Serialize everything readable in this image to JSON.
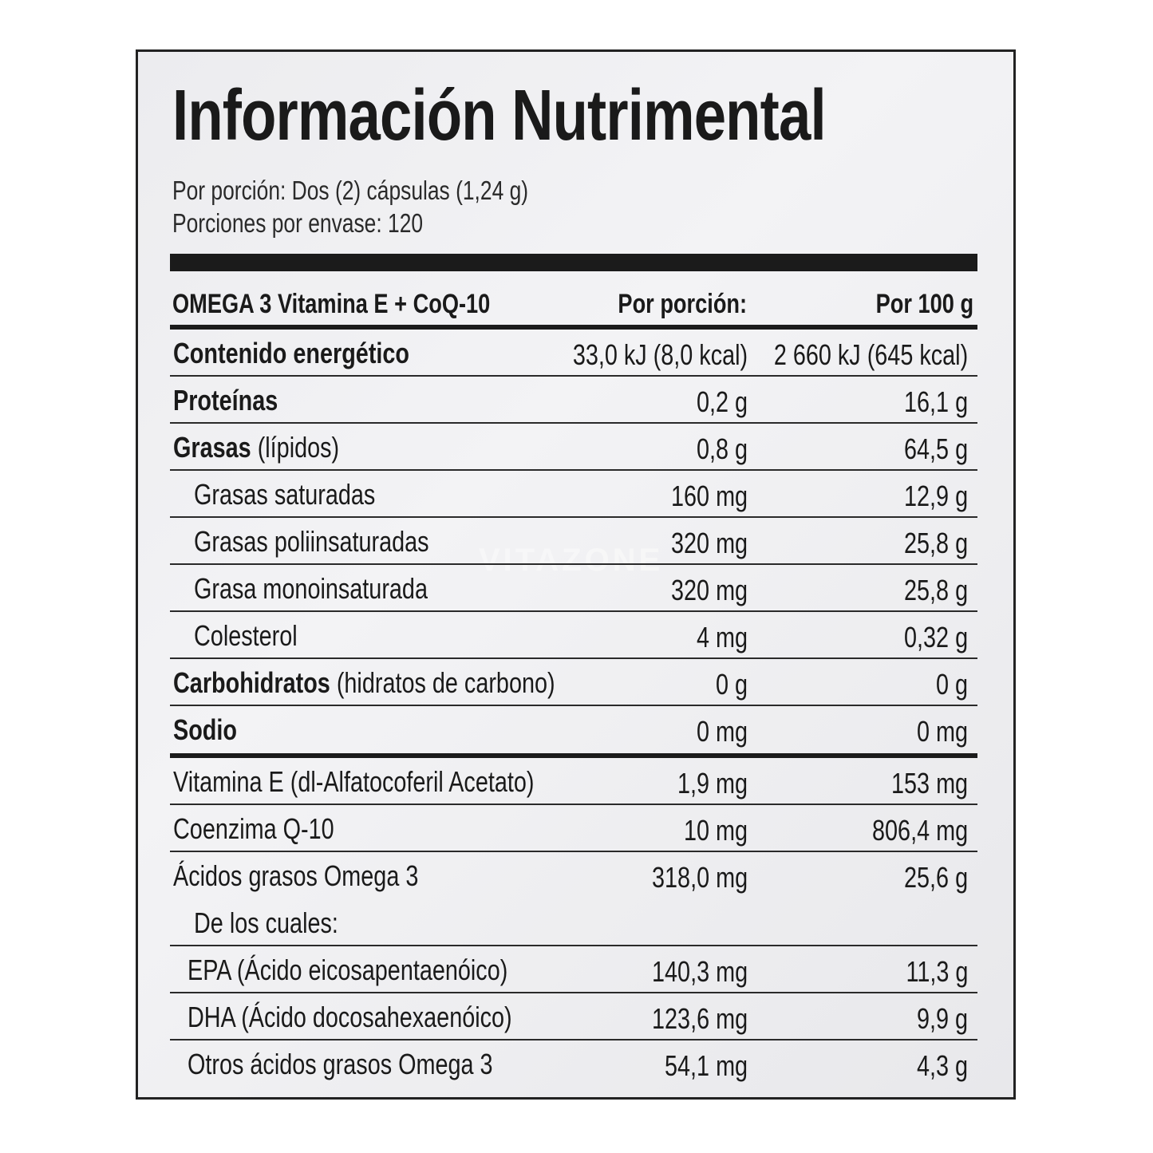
{
  "title": "Información Nutrimental",
  "serving": "Por porción: Dos (2) cápsulas (1,24 g)",
  "servings_per_container": "Porciones por envase: 120",
  "watermark": "VITAZONE",
  "header": {
    "product": "OMEGA 3 Vitamina E + CoQ-10",
    "per_serving": "Por porción:",
    "per_100g": "Por 100 g"
  },
  "rows": [
    {
      "bold": "Contenido energético",
      "normal": "",
      "indent": 0,
      "per_serving": "33,0 kJ (8,0 kcal)",
      "per_100g": "2 660 kJ (645 kcal)",
      "line": "thin"
    },
    {
      "bold": "Proteínas",
      "normal": "",
      "indent": 0,
      "per_serving": "0,2 g",
      "per_100g": "16,1 g",
      "line": "thin"
    },
    {
      "bold": "Grasas",
      "normal": " (lípidos)",
      "indent": 0,
      "per_serving": "0,8 g",
      "per_100g": "64,5 g",
      "line": "thin"
    },
    {
      "bold": "",
      "normal": "Grasas saturadas",
      "indent": 1,
      "per_serving": "160 mg",
      "per_100g": "12,9 g",
      "line": "thin"
    },
    {
      "bold": "",
      "normal": "Grasas poliinsaturadas",
      "indent": 1,
      "per_serving": "320 mg",
      "per_100g": "25,8 g",
      "line": "thin"
    },
    {
      "bold": "",
      "normal": "Grasa monoinsaturada",
      "indent": 1,
      "per_serving": "320 mg",
      "per_100g": "25,8 g",
      "line": "thin"
    },
    {
      "bold": "",
      "normal": "Colesterol",
      "indent": 1,
      "per_serving": "4 mg",
      "per_100g": "0,32 g",
      "line": "thin"
    },
    {
      "bold": "Carbohidratos",
      "normal": " (hidratos de carbono)",
      "indent": 0,
      "per_serving": "0 g",
      "per_100g": "0 g",
      "line": "thin"
    },
    {
      "bold": "Sodio",
      "normal": "",
      "indent": 0,
      "per_serving": "0 mg",
      "per_100g": "0 mg",
      "line": "thick"
    },
    {
      "bold": "",
      "normal": "Vitamina E (dl-Alfatocoferil Acetato)",
      "indent": 0,
      "per_serving": "1,9 mg",
      "per_100g": "153  mg",
      "line": "thin"
    },
    {
      "bold": "",
      "normal": "Coenzima Q-10",
      "indent": 0,
      "per_serving": "10 mg",
      "per_100g": "806,4 mg",
      "line": "thin"
    },
    {
      "bold": "",
      "normal": "Ácidos grasos Omega 3",
      "indent": 0,
      "per_serving": "318,0 mg",
      "per_100g": "25,6 g",
      "line": "thin",
      "sub": "De los cuales:"
    },
    {
      "bold": "",
      "normal": "EPA (Ácido eicosapentaenóico)",
      "indent": 2,
      "per_serving": "140,3 mg",
      "per_100g": "11,3 g",
      "line": "thin"
    },
    {
      "bold": "",
      "normal": "DHA (Ácido docosahexaenóico)",
      "indent": 2,
      "per_serving": "123,6 mg",
      "per_100g": "9,9 g",
      "line": "thin"
    },
    {
      "bold": "",
      "normal": "Otros ácidos grasos Omega 3",
      "indent": 2,
      "per_serving": "54,1 mg",
      "per_100g": "4,3 g",
      "line": "none"
    }
  ]
}
